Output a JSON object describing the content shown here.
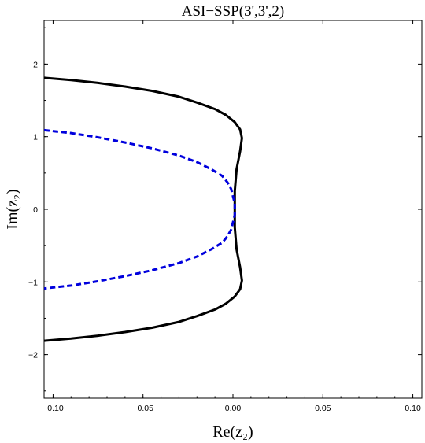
{
  "chart_data": {
    "type": "line",
    "title": "ASI−SSP(3',3',2)",
    "xlabel": "Re(z₂)",
    "ylabel": "Im(z₂)",
    "xlim": [
      -0.105,
      0.105
    ],
    "ylim": [
      -2.6,
      2.6
    ],
    "x_ticks": [
      {
        "value": -0.1,
        "label": "−0.10"
      },
      {
        "value": -0.05,
        "label": "−0.05"
      },
      {
        "value": 0.0,
        "label": "0.00"
      },
      {
        "value": 0.05,
        "label": "0.05"
      },
      {
        "value": 0.1,
        "label": "0.10"
      }
    ],
    "y_ticks": [
      {
        "value": 2,
        "label": "2"
      },
      {
        "value": 1,
        "label": "1"
      },
      {
        "value": 0,
        "label": "0"
      },
      {
        "value": -1,
        "label": "−1"
      },
      {
        "value": -2,
        "label": "−2"
      }
    ],
    "grid": false,
    "series": [
      {
        "style": "solid",
        "color": "#000000",
        "x": [
          -0.105,
          -0.09,
          -0.075,
          -0.06,
          -0.045,
          -0.03,
          -0.02,
          -0.01,
          -0.004,
          0.001,
          0.004,
          0.005,
          0.004,
          0.002,
          0.001,
          0.001,
          0.001,
          0.002,
          0.004,
          0.005,
          0.004,
          0.001,
          -0.004,
          -0.01,
          -0.02,
          -0.03,
          -0.045,
          -0.06,
          -0.075,
          -0.09,
          -0.105
        ],
        "y": [
          1.81,
          1.78,
          1.74,
          1.69,
          1.63,
          1.55,
          1.47,
          1.38,
          1.3,
          1.2,
          1.1,
          0.98,
          0.8,
          0.55,
          0.25,
          0.0,
          -0.25,
          -0.55,
          -0.8,
          -0.98,
          -1.1,
          -1.2,
          -1.3,
          -1.38,
          -1.47,
          -1.55,
          -1.63,
          -1.69,
          -1.74,
          -1.78,
          -1.81
        ]
      },
      {
        "style": "dashed",
        "color": "#0000dd",
        "x": [
          -0.105,
          -0.09,
          -0.075,
          -0.06,
          -0.045,
          -0.03,
          -0.02,
          -0.012,
          -0.006,
          -0.003,
          -0.001,
          0.0,
          0.001,
          0.001,
          0.001,
          0.0,
          -0.001,
          -0.003,
          -0.006,
          -0.012,
          -0.02,
          -0.03,
          -0.045,
          -0.06,
          -0.075,
          -0.09,
          -0.105
        ],
        "y": [
          1.09,
          1.05,
          0.99,
          0.92,
          0.84,
          0.74,
          0.65,
          0.55,
          0.46,
          0.37,
          0.28,
          0.18,
          0.08,
          0.0,
          -0.08,
          -0.18,
          -0.28,
          -0.37,
          -0.46,
          -0.55,
          -0.65,
          -0.74,
          -0.84,
          -0.92,
          -0.99,
          -1.05,
          -1.09
        ]
      }
    ]
  }
}
